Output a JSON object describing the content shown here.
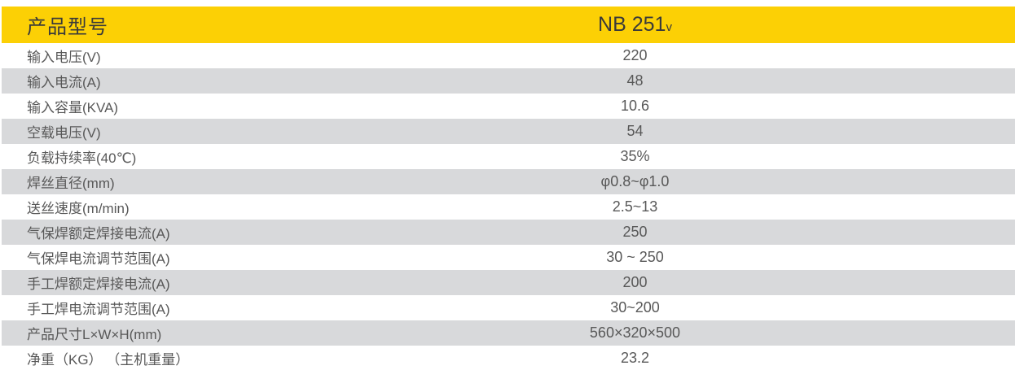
{
  "table": {
    "header": {
      "label": "产品型号",
      "model_name": "NB 251",
      "model_suffix": "v"
    },
    "rows": [
      {
        "label": "输入电压(V)",
        "value": "220"
      },
      {
        "label": "输入电流(A)",
        "value": "48"
      },
      {
        "label": "输入容量(KVA)",
        "value": "10.6"
      },
      {
        "label": "空载电压(V)",
        "value": "54"
      },
      {
        "label": "负载持续率(40℃)",
        "value": "35%"
      },
      {
        "label": "焊丝直径(mm)",
        "value": "φ0.8~φ1.0"
      },
      {
        "label": "送丝速度(m/min)",
        "value": "2.5~13"
      },
      {
        "label": "气保焊额定焊接电流(A)",
        "value": "250"
      },
      {
        "label": "气保焊电流调节范围(A)",
        "value": "30 ~ 250"
      },
      {
        "label": "手工焊额定焊接电流(A)",
        "value": "200"
      },
      {
        "label": "手工焊电流调节范围(A)",
        "value": "30~200"
      },
      {
        "label": "产品尺寸L×W×H(mm)",
        "value": "560×320×500"
      },
      {
        "label": "净重（KG） （主机重量）",
        "value": "23.2"
      }
    ],
    "colors": {
      "header_bg": "#FCD005",
      "header_text": "#3A3A3A",
      "alt_row_bg": "#D8D9DB",
      "body_text": "#585858"
    }
  }
}
